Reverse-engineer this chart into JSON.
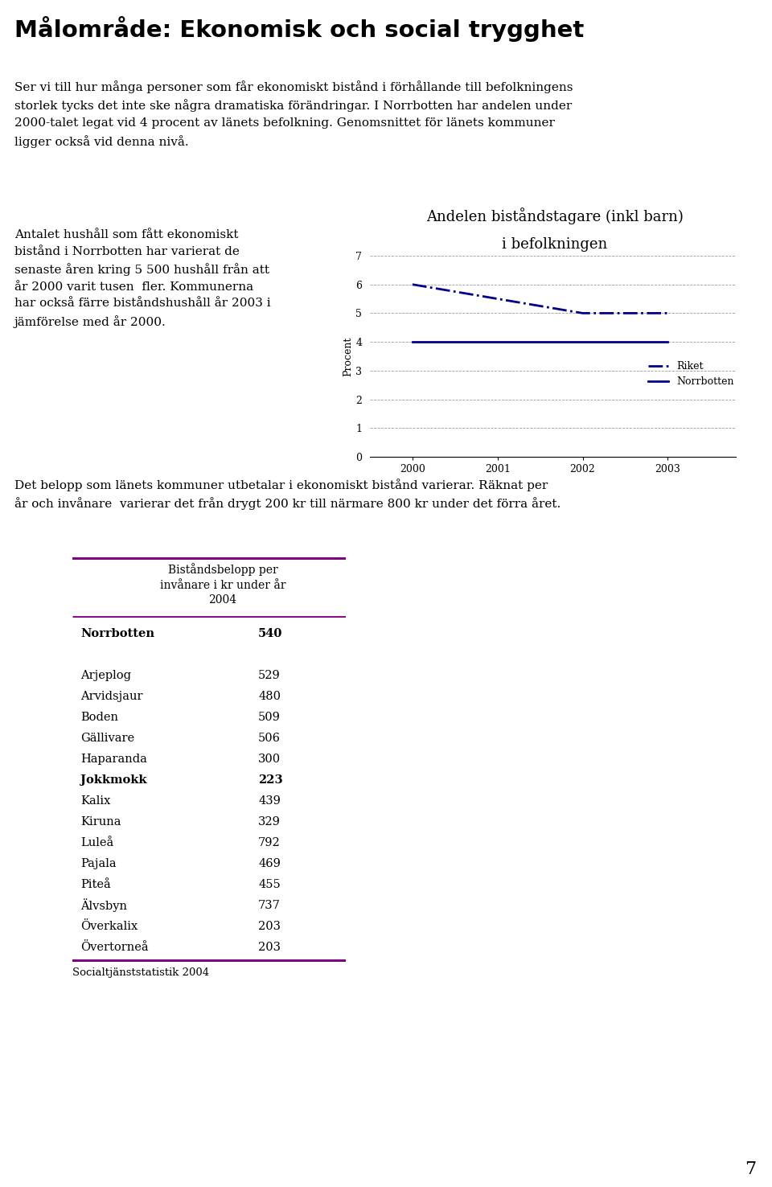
{
  "title": "Målområde: Ekonomisk och social trygghet",
  "intro_text": "Ser vi till hur många personer som får ekonomiskt bistånd i förhållande till befolkningens\nstorlek tycks det inte ske några dramatiska förändringar. I Norrbotten har andelen under\n2000-talet legat vid 4 procent av länets befolkning. Genomsnittet för länets kommuner\nligger också vid denna nivå.",
  "left_text": "Antalet hushåll som fått ekonomiskt\nbistånd i Norrbotten har varierat de\nsenaste åren kring 5 500 hushåll från att\når 2000 varit tusen  fler. Kommunerna\nhar också färre biståndshushåll år 2003 i\njämförelse med år 2000.",
  "chart_title_line1": "Andelen biståndstagare (inkl barn)",
  "chart_title_line2": "i befolkningen",
  "chart_ylabel": "Procent",
  "chart_years": [
    2000,
    2001,
    2002,
    2003
  ],
  "riket_values": [
    6.0,
    5.5,
    5.0,
    5.0
  ],
  "norrbotten_values": [
    4.0,
    4.0,
    4.0,
    4.0
  ],
  "chart_ylim": [
    0,
    7
  ],
  "chart_yticks": [
    0,
    1,
    2,
    3,
    4,
    5,
    6,
    7
  ],
  "line_color": "#00008B",
  "middle_text": "Det belopp som länets kommuner utbetalar i ekonomiskt bistånd varierar. Räknat per\når och invånare  varierar det från drygt 200 kr till närmare 800 kr under det förra året.",
  "table_header": "Biståndsbelopp per\ninvånare i kr under år\n2004",
  "table_color": "#800080",
  "table_rows": [
    [
      "Norrbotten",
      "540",
      true
    ],
    [
      "",
      "",
      false
    ],
    [
      "Arjeplog",
      "529",
      false
    ],
    [
      "Arvidsjaur",
      "480",
      false
    ],
    [
      "Boden",
      "509",
      false
    ],
    [
      "Gällivare",
      "506",
      false
    ],
    [
      "Haparanda",
      "300",
      false
    ],
    [
      "Jokkmokk",
      "223",
      true
    ],
    [
      "Kalix",
      "439",
      false
    ],
    [
      "Kiruna",
      "329",
      false
    ],
    [
      "Luleå",
      "792",
      false
    ],
    [
      "Pajala",
      "469",
      false
    ],
    [
      "Piteå",
      "455",
      false
    ],
    [
      "Älvsbyn",
      "737",
      false
    ],
    [
      "Överkalix",
      "203",
      false
    ],
    [
      "Övertorneå",
      "203",
      false
    ]
  ],
  "source_text": "Socialtjänststatistik 2004",
  "page_number": "7",
  "background_color": "#ffffff"
}
